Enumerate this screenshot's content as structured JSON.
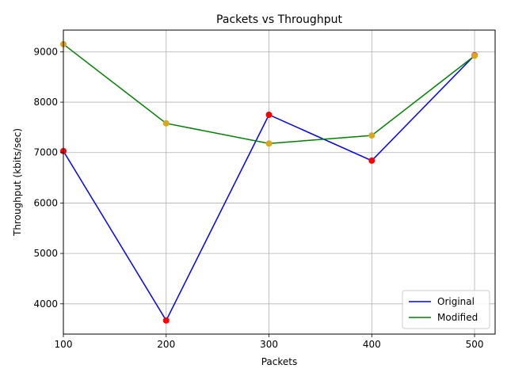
{
  "chart_data": {
    "type": "line",
    "title": "Packets vs Throughput",
    "xlabel": "Packets",
    "ylabel": "Throughput (kbits/sec)",
    "x": [
      100,
      200,
      300,
      400,
      500
    ],
    "xlim": [
      100,
      520
    ],
    "ylim": [
      3400,
      9430
    ],
    "xticks": [
      100,
      200,
      300,
      400,
      500
    ],
    "yticks": [
      4000,
      5000,
      6000,
      7000,
      8000,
      9000
    ],
    "grid": true,
    "legend_position": "bottom-right",
    "series": [
      {
        "name": "Original",
        "values": [
          7030,
          3670,
          7750,
          6840,
          8930
        ],
        "line_color": "#0000ff",
        "marker_color": "#ff0000"
      },
      {
        "name": "Modified",
        "values": [
          9150,
          7580,
          7180,
          7340,
          8920
        ],
        "line_color": "#008000",
        "marker_color": "#daa520"
      }
    ]
  }
}
